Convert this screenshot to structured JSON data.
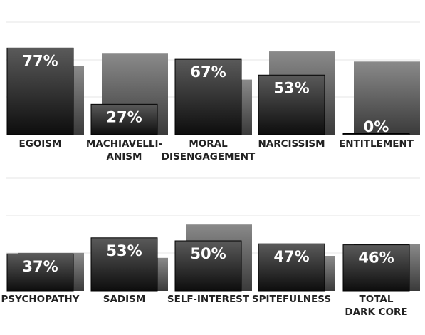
{
  "chart_data": [
    {
      "type": "bar",
      "categories": [
        "EGOISM",
        "MACHIAVELLI-\nANISM",
        "MORAL\nDISENGAGEMENT",
        "NARCISSISM",
        "ENTITLEMENT"
      ],
      "series": [
        {
          "values": [
            77,
            27,
            67,
            53,
            0
          ]
        },
        {
          "values": [
            61,
            72,
            49,
            74,
            65
          ]
        }
      ],
      "data_labels": [
        "77%",
        "27%",
        "67%",
        "53%",
        "0%"
      ],
      "ylim": [
        0,
        100
      ],
      "grid": true,
      "colors": {
        "primary": "#111111",
        "primary_top": "#5a5a5a",
        "secondary": "#3a3a3a",
        "secondary_top": "#8a8a8a",
        "grid": "#e6e6e6",
        "label": "#222222",
        "value": "#ffffff"
      }
    },
    {
      "type": "bar",
      "categories": [
        "PSYCHOPATHY",
        "SADISM",
        "SELF-INTEREST",
        "SPITEFULNESS",
        "TOTAL\nDARK CORE"
      ],
      "series": [
        {
          "values": [
            37,
            53,
            50,
            47,
            46
          ]
        },
        {
          "values": [
            38,
            33,
            67,
            35,
            47
          ]
        }
      ],
      "data_labels": [
        "37%",
        "53%",
        "50%",
        "47%",
        "46%"
      ],
      "ylim": [
        0,
        100
      ],
      "grid": true,
      "colors": {
        "primary": "#111111",
        "primary_top": "#5a5a5a",
        "secondary": "#3a3a3a",
        "secondary_top": "#8a8a8a",
        "grid": "#e6e6e6",
        "label": "#222222",
        "value": "#ffffff"
      }
    }
  ]
}
